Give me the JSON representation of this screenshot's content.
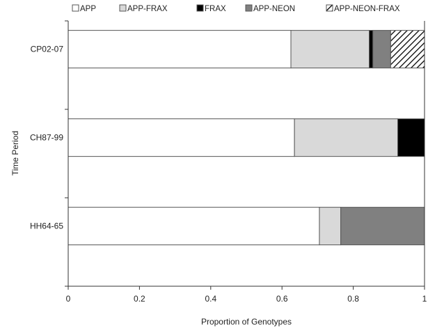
{
  "chart_data": {
    "type": "bar",
    "orientation": "horizontal",
    "stacked": true,
    "xlabel": "Proportion of Genotypes",
    "ylabel": "Time Period",
    "xlim": [
      0,
      1
    ],
    "xticks": [
      "0",
      "0.2",
      "0.4",
      "0.6",
      "0.8",
      "1"
    ],
    "grid": false,
    "legend_position": "top",
    "categories": [
      "CP02-07",
      "CH87-99",
      "HH64-65"
    ],
    "series": [
      {
        "name": "APP",
        "fill": "#ffffff",
        "values": [
          0.625,
          0.635,
          0.705
        ]
      },
      {
        "name": "APP-FRAX",
        "fill": "#d9d9d9",
        "values": [
          0.22,
          0.29,
          0.06
        ]
      },
      {
        "name": "FRAX",
        "fill": "#000000",
        "values": [
          0.01,
          0.075,
          0.0
        ]
      },
      {
        "name": "APP-NEON",
        "fill": "#808080",
        "values": [
          0.05,
          0.0,
          0.235
        ]
      },
      {
        "name": "APP-NEON-FRAX",
        "fill": "hatch",
        "values": [
          0.095,
          0.0,
          0.0
        ]
      }
    ]
  }
}
